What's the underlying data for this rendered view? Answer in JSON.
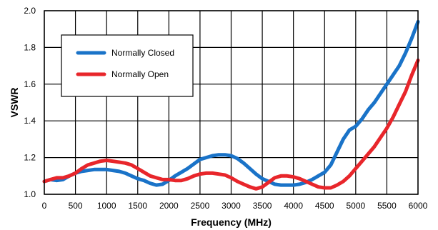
{
  "chart_data": {
    "type": "line",
    "title": "",
    "xlabel": "Frequency (MHz)",
    "ylabel": "VSWR",
    "xlim": [
      0,
      6000
    ],
    "ylim": [
      1.0,
      2.0
    ],
    "xticks": [
      "0",
      "500",
      "1000",
      "1500",
      "2000",
      "2500",
      "3000",
      "3500",
      "4000",
      "4500",
      "5000",
      "5500",
      "6000"
    ],
    "yticks": [
      "1.0",
      "1.2",
      "1.4",
      "1.6",
      "1.8",
      "2.0"
    ],
    "grid": true,
    "legend_position": "top-left",
    "series": [
      {
        "name": "Normally Closed",
        "color": "#1a73c8",
        "x": [
          0,
          100,
          200,
          300,
          400,
          500,
          600,
          700,
          800,
          900,
          1000,
          1100,
          1200,
          1300,
          1400,
          1500,
          1600,
          1700,
          1800,
          1900,
          2000,
          2100,
          2200,
          2300,
          2400,
          2500,
          2600,
          2700,
          2800,
          2900,
          3000,
          3100,
          3200,
          3300,
          3400,
          3500,
          3600,
          3700,
          3800,
          3900,
          4000,
          4100,
          4200,
          4300,
          4400,
          4500,
          4600,
          4700,
          4800,
          4900,
          5000,
          5100,
          5200,
          5300,
          5400,
          5500,
          5600,
          5700,
          5800,
          5900,
          6000
        ],
        "values": [
          1.07,
          1.08,
          1.075,
          1.08,
          1.1,
          1.115,
          1.125,
          1.13,
          1.135,
          1.135,
          1.135,
          1.13,
          1.125,
          1.115,
          1.1,
          1.085,
          1.075,
          1.06,
          1.05,
          1.055,
          1.075,
          1.1,
          1.12,
          1.14,
          1.165,
          1.19,
          1.2,
          1.21,
          1.215,
          1.215,
          1.21,
          1.195,
          1.17,
          1.14,
          1.11,
          1.085,
          1.07,
          1.055,
          1.05,
          1.05,
          1.05,
          1.055,
          1.065,
          1.08,
          1.1,
          1.12,
          1.16,
          1.23,
          1.3,
          1.35,
          1.37,
          1.41,
          1.46,
          1.5,
          1.55,
          1.6,
          1.65,
          1.7,
          1.77,
          1.85,
          1.94
        ]
      },
      {
        "name": "Normally Open",
        "color": "#e8262b",
        "x": [
          0,
          100,
          200,
          300,
          400,
          500,
          600,
          700,
          800,
          900,
          1000,
          1100,
          1200,
          1300,
          1400,
          1500,
          1600,
          1700,
          1800,
          1900,
          2000,
          2100,
          2200,
          2300,
          2400,
          2500,
          2600,
          2700,
          2800,
          2900,
          3000,
          3100,
          3200,
          3300,
          3400,
          3500,
          3600,
          3700,
          3800,
          3900,
          4000,
          4100,
          4200,
          4300,
          4400,
          4500,
          4600,
          4700,
          4800,
          4900,
          5000,
          5100,
          5200,
          5300,
          5400,
          5500,
          5600,
          5700,
          5800,
          5900,
          6000
        ],
        "values": [
          1.07,
          1.08,
          1.09,
          1.09,
          1.1,
          1.115,
          1.14,
          1.16,
          1.17,
          1.18,
          1.185,
          1.18,
          1.175,
          1.17,
          1.16,
          1.14,
          1.12,
          1.1,
          1.09,
          1.08,
          1.08,
          1.075,
          1.075,
          1.085,
          1.1,
          1.11,
          1.115,
          1.115,
          1.11,
          1.105,
          1.09,
          1.07,
          1.055,
          1.04,
          1.03,
          1.04,
          1.065,
          1.09,
          1.1,
          1.1,
          1.095,
          1.085,
          1.07,
          1.055,
          1.04,
          1.035,
          1.035,
          1.05,
          1.07,
          1.1,
          1.14,
          1.18,
          1.22,
          1.26,
          1.31,
          1.36,
          1.42,
          1.49,
          1.56,
          1.65,
          1.73
        ]
      }
    ]
  }
}
